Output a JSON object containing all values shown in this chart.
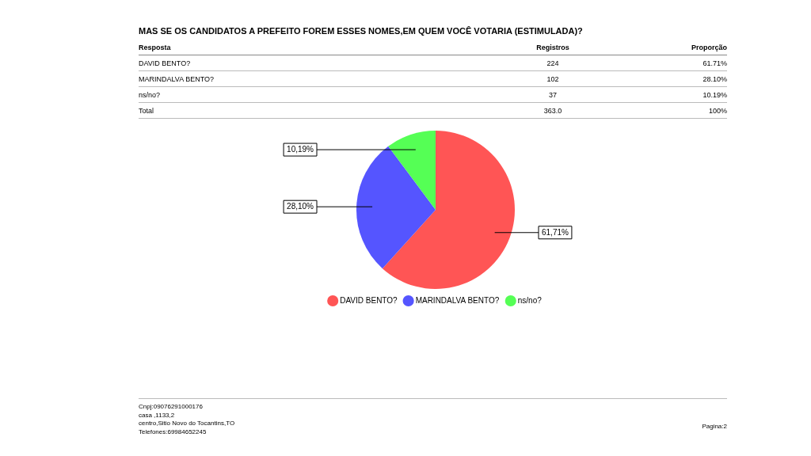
{
  "chart_data": {
    "type": "pie",
    "title": "MAS SE OS CANDIDATOS A PREFEITO FOREM ESSES NOMES,EM QUEM VOCÊ VOTARIA (ESTIMULADA)?",
    "categories": [
      "DAVID BENTO?",
      "MARINDALVA BENTO?",
      "ns/no?"
    ],
    "values": [
      61.71,
      28.1,
      10.19
    ],
    "colors": [
      "#ff5555",
      "#5555ff",
      "#55ff55"
    ],
    "value_labels": [
      "61,71%",
      "28,10%",
      "10,19%"
    ],
    "legend": "bottom",
    "annotations": [
      "Resposta",
      "Registros",
      "Proporção",
      "224",
      "61.71%",
      "102",
      "28.10%",
      "37",
      "10.19%",
      "Total",
      "363.0",
      "100%",
      "Cnpj:09076291000176",
      "casa ,1133,2",
      "centro,Sitio Novo do Tocantins,TO",
      "Telefones:69984652245",
      "Pagina:2"
    ]
  }
}
